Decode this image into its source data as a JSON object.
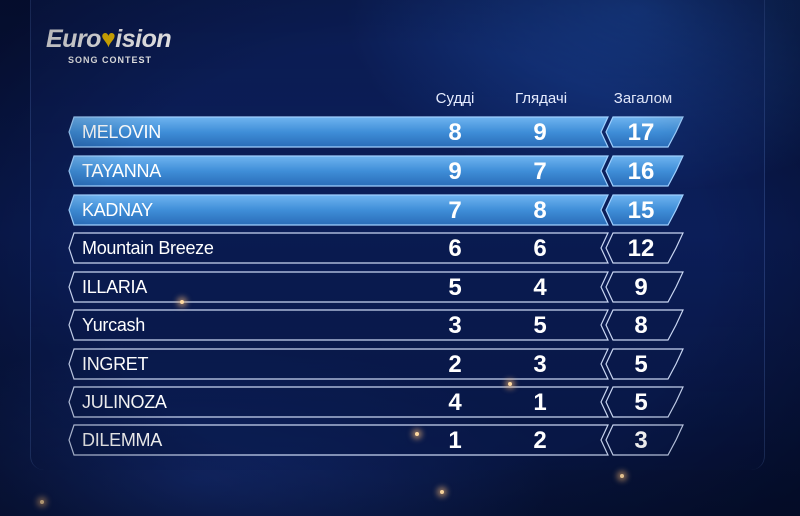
{
  "logo": {
    "main_left": "Euro",
    "heart": "♥",
    "main_right": "ision",
    "sub": "SONG CONTEST"
  },
  "columns": {
    "judges": "Судді",
    "viewers": "Глядачі",
    "total": "Загалом"
  },
  "rows": [
    {
      "name": "MELOVIN",
      "judges": "8",
      "viewers": "9",
      "total": "17",
      "highlighted": true
    },
    {
      "name": "TAYANNA",
      "judges": "9",
      "viewers": "7",
      "total": "16",
      "highlighted": true
    },
    {
      "name": "KADNAY",
      "judges": "7",
      "viewers": "8",
      "total": "15",
      "highlighted": true
    },
    {
      "name": "Mountain Breeze",
      "judges": "6",
      "viewers": "6",
      "total": "12",
      "highlighted": false
    },
    {
      "name": "ILLARIA",
      "judges": "5",
      "viewers": "4",
      "total": "9",
      "highlighted": false
    },
    {
      "name": "Yurcash",
      "judges": "3",
      "viewers": "5",
      "total": "8",
      "highlighted": false
    },
    {
      "name": "INGRET",
      "judges": "2",
      "viewers": "3",
      "total": "5",
      "highlighted": false
    },
    {
      "name": "JULINOZA",
      "judges": "4",
      "viewers": "1",
      "total": "5",
      "highlighted": false
    },
    {
      "name": "DILEMMA",
      "judges": "1",
      "viewers": "2",
      "total": "3",
      "highlighted": false
    }
  ],
  "colors": {
    "highlight": "#3f8ed8",
    "row_border": "#c9d6f2",
    "background": "#0a1b52",
    "logo_heart": "#f5c400"
  }
}
